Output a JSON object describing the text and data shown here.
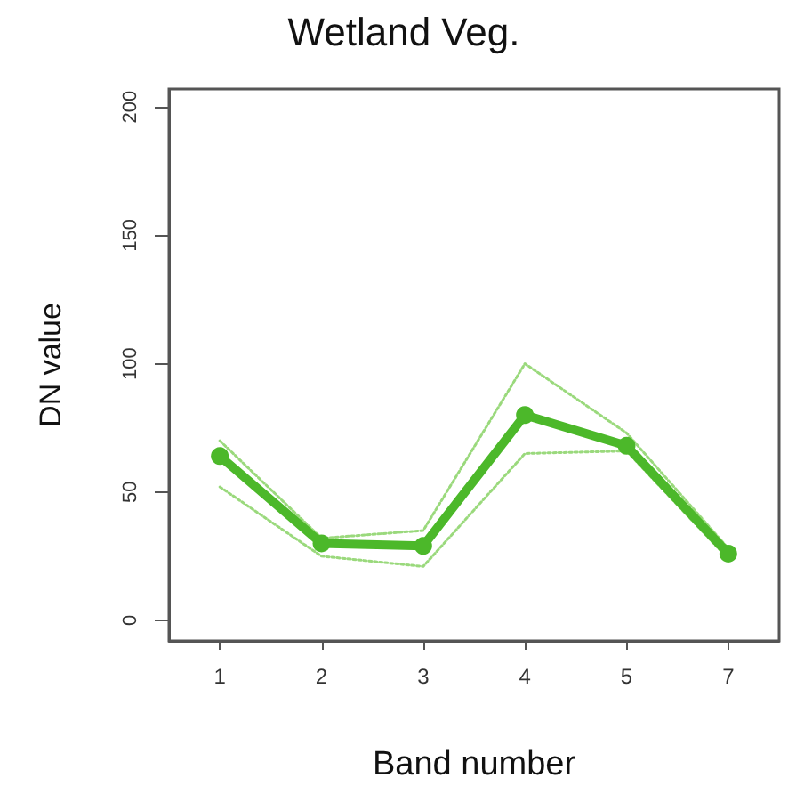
{
  "chart_data": {
    "type": "line",
    "title": "Wetland Veg.",
    "xlabel": "Band number",
    "ylabel": "DN value",
    "categories": [
      "1",
      "2",
      "3",
      "4",
      "5",
      "7"
    ],
    "series": [
      {
        "color": "#9ad97c",
        "values": [
          70,
          32,
          35,
          100,
          73,
          28
        ],
        "line_style": "dotted",
        "marker": "none"
      },
      {
        "color": "#9ad97c",
        "values": [
          52,
          25,
          21,
          65,
          66,
          24
        ],
        "line_style": "dotted",
        "marker": "none"
      },
      {
        "color": "#4cb82a",
        "values": [
          64,
          30,
          29,
          80,
          68,
          26
        ],
        "line_style": "solid",
        "marker": "circle"
      }
    ],
    "ylim": [
      -8,
      207
    ],
    "yticks": [
      0,
      50,
      100,
      150,
      200
    ]
  }
}
